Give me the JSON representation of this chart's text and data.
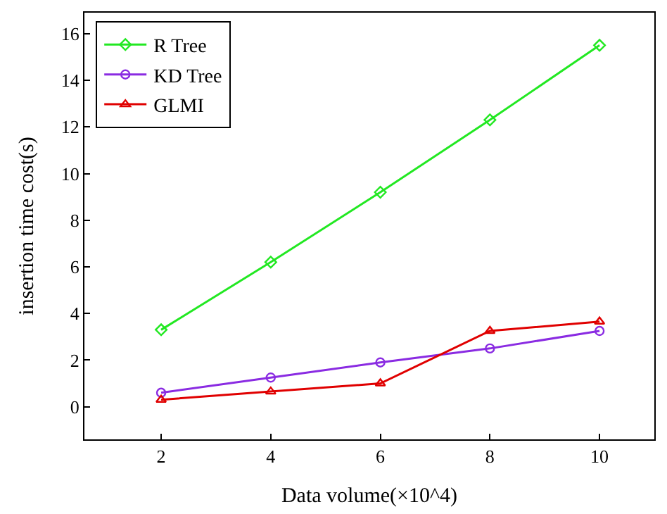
{
  "chart_data": {
    "type": "line",
    "xlabel": "Data volume(×10^4)",
    "ylabel": "insertion time cost(s)",
    "x": [
      2,
      4,
      6,
      8,
      10
    ],
    "series": [
      {
        "name": "R Tree",
        "color": "#22e822",
        "marker": "diamond",
        "values": [
          3.3,
          6.2,
          9.2,
          12.3,
          15.5
        ]
      },
      {
        "name": "KD Tree",
        "color": "#8a2be2",
        "marker": "circle",
        "values": [
          0.6,
          1.25,
          1.9,
          2.5,
          3.25
        ]
      },
      {
        "name": "GLMI",
        "color": "#e00000",
        "marker": "triangle",
        "values": [
          0.3,
          0.65,
          1.0,
          3.25,
          3.65
        ]
      }
    ],
    "xlim": [
      0.6,
      11
    ],
    "xticks": [
      2,
      4,
      6,
      8,
      10
    ],
    "ylim": [
      -1.4,
      16.9
    ],
    "yticks": [
      0,
      2,
      4,
      6,
      8,
      10,
      12,
      14,
      16
    ],
    "legend": "top left"
  }
}
